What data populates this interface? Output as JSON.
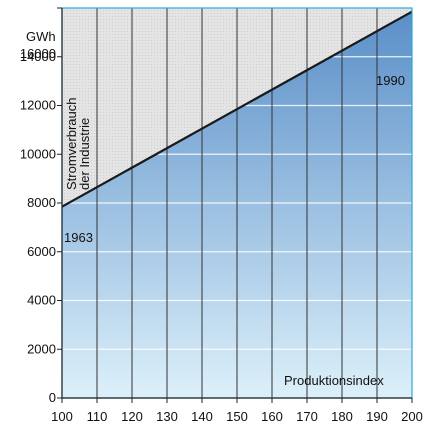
{
  "chart_data": {
    "type": "line",
    "unit": "GWh",
    "ylabel": [
      "Stromverbrauch",
      "der Industrie"
    ],
    "xlabel": "Produktionsindex",
    "xlim": [
      100,
      200
    ],
    "ylim": [
      0,
      16000
    ],
    "x_ticks": [
      100,
      110,
      120,
      130,
      140,
      150,
      160,
      170,
      180,
      190,
      200
    ],
    "y_ticks": [
      0,
      2000,
      4000,
      6000,
      8000,
      10000,
      12000,
      14000,
      16000
    ],
    "series": [
      {
        "x": [
          100,
          200
        ],
        "y": [
          7850,
          15850
        ]
      }
    ],
    "annotations": [
      {
        "text": "1963",
        "x": 100,
        "y": 7850
      },
      {
        "text": "1990",
        "x": 200,
        "y": 15850
      }
    ],
    "grid": {
      "vertical": true,
      "horizontal": true
    },
    "colors": {
      "above_line": "#e4e4e4",
      "below_top": "#5a8fc8",
      "below_bottom": "#dcf0fa",
      "line": "#1a1a1a",
      "grid_vertical": "#333333",
      "grid_horizontal": "#ffffff",
      "frame": "#2aa8e0"
    }
  }
}
